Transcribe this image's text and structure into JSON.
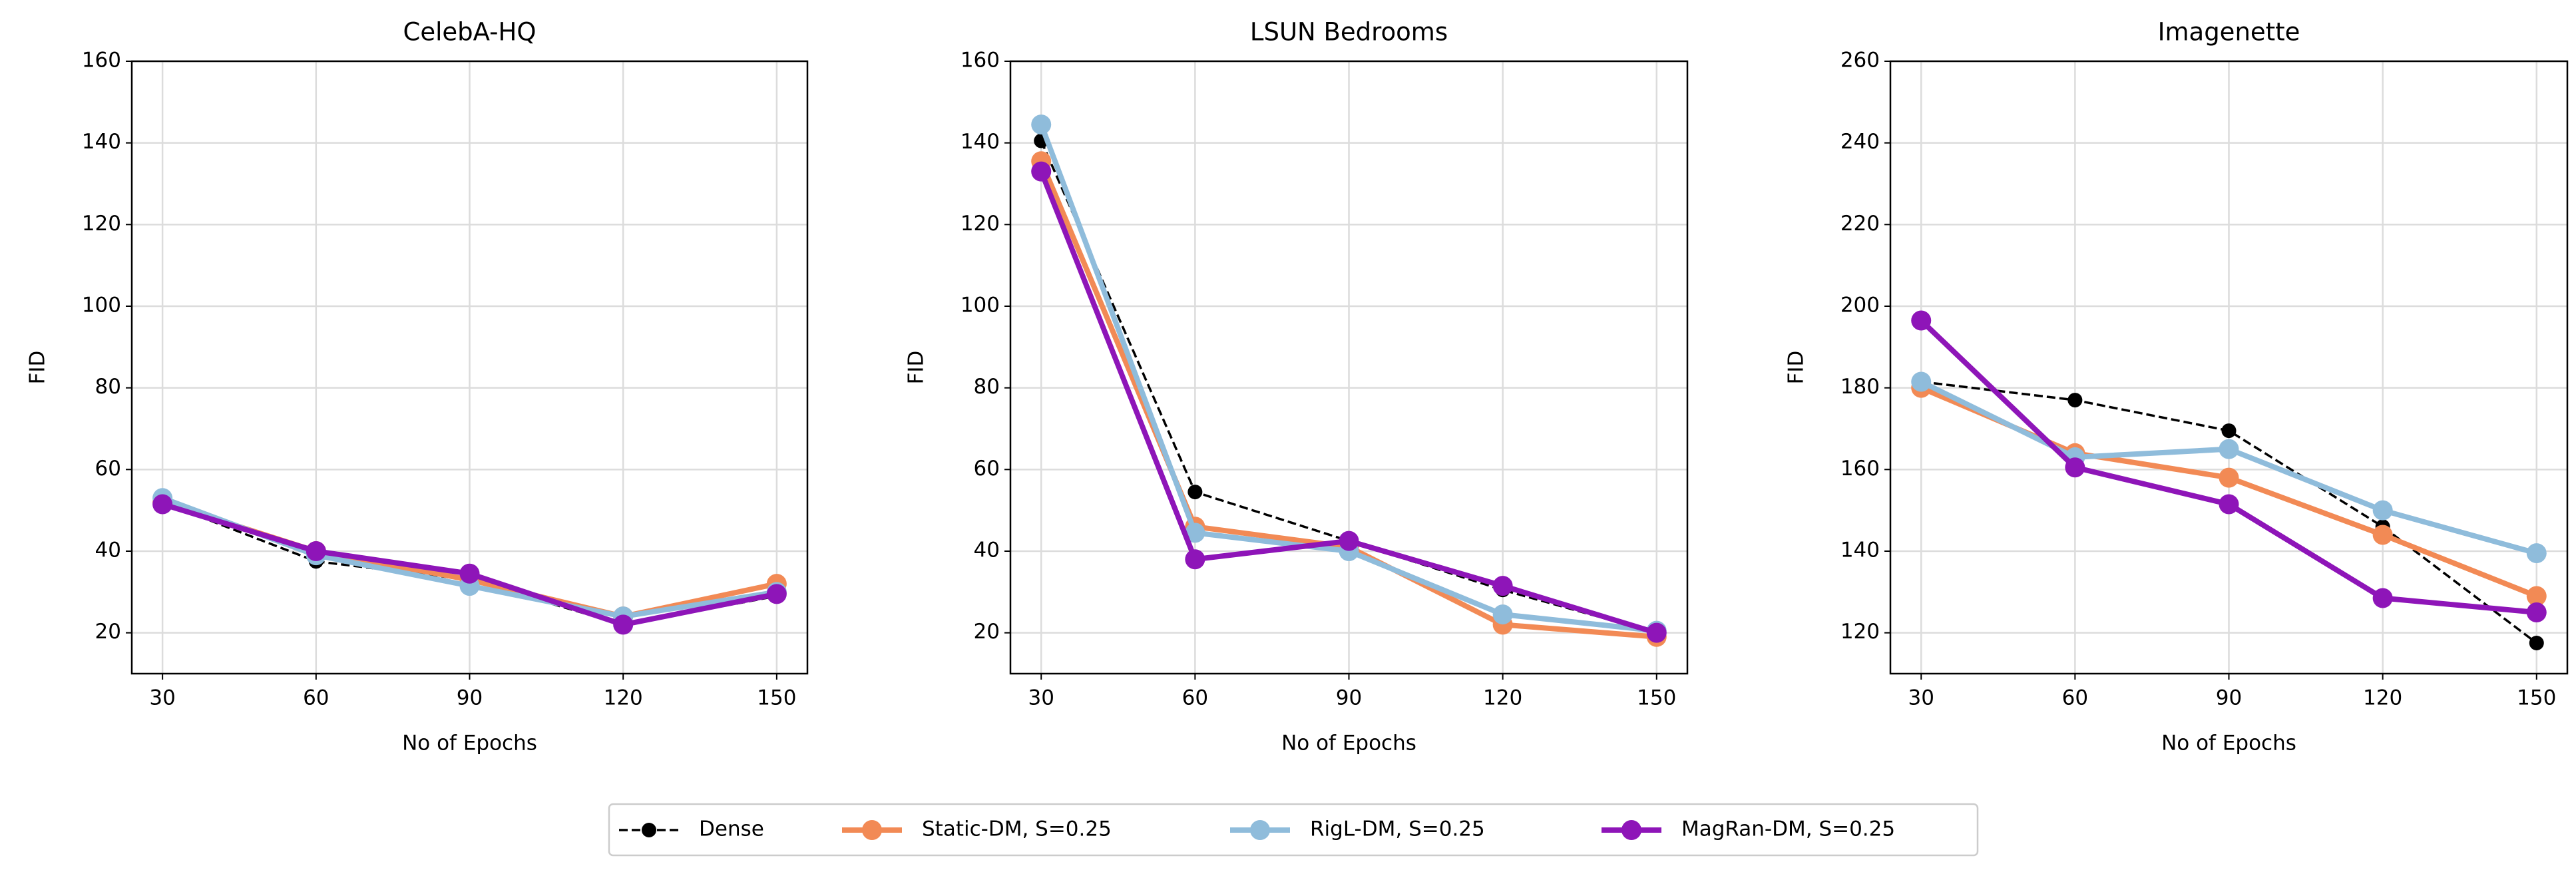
{
  "chart_data": [
    {
      "type": "line",
      "title": "CelebA-HQ",
      "xlabel": "No of Epochs",
      "ylabel": "FID",
      "x": [
        30,
        60,
        90,
        120,
        150
      ],
      "xlim": [
        24,
        156
      ],
      "xticks": [
        30,
        60,
        90,
        120,
        150
      ],
      "ylim": [
        10,
        160
      ],
      "yticks": [
        20,
        40,
        60,
        80,
        100,
        120,
        140,
        160
      ],
      "grid": true,
      "series": [
        {
          "name": "Dense",
          "color": "#000000",
          "linestyle": "dashed",
          "values": [
            52,
            37.5,
            33,
            22,
            29
          ]
        },
        {
          "name": "Static-DM, S=0.25",
          "color": "#f28a55",
          "linestyle": "solid",
          "values": [
            52,
            40,
            33,
            24,
            32
          ]
        },
        {
          "name": "RigL-DM, S=0.25",
          "color": "#8fbcdb",
          "linestyle": "solid",
          "values": [
            53,
            39,
            31.5,
            24,
            30
          ]
        },
        {
          "name": "MagRan-DM, S=0.25",
          "color": "#8e15b8",
          "linestyle": "solid",
          "values": [
            51.5,
            40,
            34.5,
            22,
            29.5
          ]
        }
      ]
    },
    {
      "type": "line",
      "title": "LSUN Bedrooms",
      "xlabel": "No of Epochs",
      "ylabel": "FID",
      "x": [
        30,
        60,
        90,
        120,
        150
      ],
      "xlim": [
        24,
        156
      ],
      "xticks": [
        30,
        60,
        90,
        120,
        150
      ],
      "ylim": [
        10,
        160
      ],
      "yticks": [
        20,
        40,
        60,
        80,
        100,
        120,
        140,
        160
      ],
      "grid": true,
      "series": [
        {
          "name": "Dense",
          "color": "#000000",
          "linestyle": "dashed",
          "values": [
            140.5,
            54.5,
            42.5,
            30.5,
            20
          ]
        },
        {
          "name": "Static-DM, S=0.25",
          "color": "#f28a55",
          "linestyle": "solid",
          "values": [
            135.5,
            46,
            41,
            22,
            19
          ]
        },
        {
          "name": "RigL-DM, S=0.25",
          "color": "#8fbcdb",
          "linestyle": "solid",
          "values": [
            144.5,
            44.5,
            40,
            24.5,
            20.5
          ]
        },
        {
          "name": "MagRan-DM, S=0.25",
          "color": "#8e15b8",
          "linestyle": "solid",
          "values": [
            133,
            38,
            42.5,
            31.5,
            20
          ]
        }
      ]
    },
    {
      "type": "line",
      "title": "Imagenette",
      "xlabel": "No of Epochs",
      "ylabel": "FID",
      "x": [
        30,
        60,
        90,
        120,
        150
      ],
      "xlim": [
        24,
        156
      ],
      "xticks": [
        30,
        60,
        90,
        120,
        150
      ],
      "ylim": [
        110,
        260
      ],
      "yticks": [
        120,
        140,
        160,
        180,
        200,
        220,
        240,
        260
      ],
      "grid": true,
      "series": [
        {
          "name": "Dense",
          "color": "#000000",
          "linestyle": "dashed",
          "values": [
            181.5,
            177,
            169.5,
            146,
            117.5
          ]
        },
        {
          "name": "Static-DM, S=0.25",
          "color": "#f28a55",
          "linestyle": "solid",
          "values": [
            180,
            164,
            158,
            144,
            129
          ]
        },
        {
          "name": "RigL-DM, S=0.25",
          "color": "#8fbcdb",
          "linestyle": "solid",
          "values": [
            181.5,
            163,
            165,
            150,
            139.5
          ]
        },
        {
          "name": "MagRan-DM, S=0.25",
          "color": "#8e15b8",
          "linestyle": "solid",
          "values": [
            196.5,
            160.5,
            151.5,
            128.5,
            125
          ]
        }
      ]
    }
  ]
}
